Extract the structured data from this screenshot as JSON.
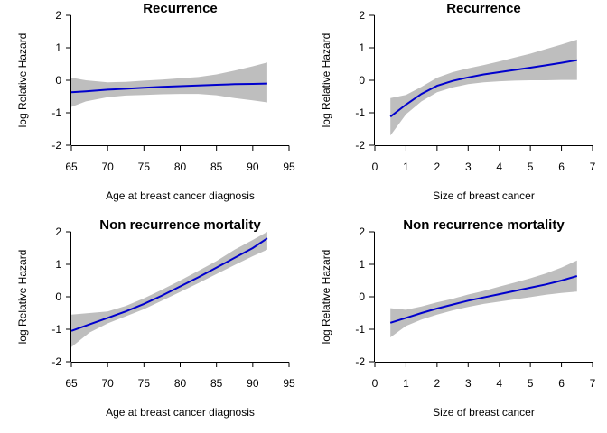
{
  "chart_data": [
    {
      "type": "line",
      "title": "Recurrence",
      "xlabel": "Age at breast cancer diagnosis",
      "ylabel": "log Relative Hazard",
      "xlim": [
        65,
        95
      ],
      "ylim": [
        -2,
        2
      ],
      "xticks": [
        "65",
        "70",
        "75",
        "80",
        "85",
        "90",
        "95"
      ],
      "yticks": [
        "-2",
        "-1",
        "0",
        "1",
        "2"
      ],
      "band_color": "#bebebe",
      "line_color": "#0000cd",
      "series": [
        {
          "x": [
            65,
            67,
            70,
            72.5,
            75,
            77.5,
            80,
            82.5,
            85,
            87.5,
            90,
            92
          ],
          "values": [
            -0.37,
            -0.34,
            -0.29,
            -0.26,
            -0.23,
            -0.2,
            -0.18,
            -0.16,
            -0.14,
            -0.12,
            -0.11,
            -0.1
          ],
          "lower": [
            -0.82,
            -0.65,
            -0.52,
            -0.47,
            -0.45,
            -0.43,
            -0.42,
            -0.42,
            -0.46,
            -0.55,
            -0.62,
            -0.68
          ],
          "upper": [
            0.08,
            0.0,
            -0.06,
            -0.05,
            -0.01,
            0.02,
            0.06,
            0.1,
            0.18,
            0.3,
            0.43,
            0.55
          ]
        }
      ]
    },
    {
      "type": "line",
      "title": "Recurrence",
      "xlabel": "Size of breast cancer",
      "ylabel": "log Relative Hazard",
      "xlim": [
        0,
        7
      ],
      "ylim": [
        -2,
        2
      ],
      "xticks": [
        "0",
        "1",
        "2",
        "3",
        "4",
        "5",
        "6",
        "7"
      ],
      "yticks": [
        "-2",
        "-1",
        "0",
        "1",
        "2"
      ],
      "band_color": "#bebebe",
      "line_color": "#0000cd",
      "series": [
        {
          "x": [
            0.5,
            1.0,
            1.5,
            2.0,
            2.5,
            3.0,
            3.5,
            4.0,
            4.5,
            5.0,
            5.5,
            6.0,
            6.5
          ],
          "values": [
            -1.12,
            -0.75,
            -0.42,
            -0.17,
            -0.02,
            0.09,
            0.18,
            0.25,
            0.32,
            0.39,
            0.46,
            0.54,
            0.62
          ],
          "lower": [
            -1.7,
            -1.05,
            -0.65,
            -0.37,
            -0.22,
            -0.12,
            -0.06,
            -0.03,
            -0.01,
            0.0,
            0.0,
            0.01,
            0.01
          ],
          "upper": [
            -0.55,
            -0.45,
            -0.2,
            0.08,
            0.25,
            0.37,
            0.47,
            0.58,
            0.7,
            0.82,
            0.96,
            1.1,
            1.25
          ]
        }
      ]
    },
    {
      "type": "line",
      "title": "Non recurrence mortality",
      "xlabel": "Age at breast cancer diagnosis",
      "ylabel": "log Relative Hazard",
      "xlim": [
        65,
        95
      ],
      "ylim": [
        -2,
        2
      ],
      "xticks": [
        "65",
        "70",
        "75",
        "80",
        "85",
        "90",
        "95"
      ],
      "yticks": [
        "-2",
        "-1",
        "0",
        "1",
        "2"
      ],
      "band_color": "#bebebe",
      "line_color": "#0000cd",
      "series": [
        {
          "x": [
            65,
            67.5,
            70,
            72.5,
            75,
            77.5,
            80,
            82.5,
            85,
            87.5,
            90,
            92
          ],
          "values": [
            -1.05,
            -0.85,
            -0.65,
            -0.45,
            -0.22,
            0.04,
            0.32,
            0.6,
            0.9,
            1.2,
            1.5,
            1.8
          ],
          "lower": [
            -1.55,
            -1.1,
            -0.82,
            -0.6,
            -0.38,
            -0.12,
            0.15,
            0.42,
            0.7,
            0.98,
            1.25,
            1.45
          ],
          "upper": [
            -0.55,
            -0.5,
            -0.45,
            -0.28,
            -0.05,
            0.22,
            0.5,
            0.8,
            1.1,
            1.45,
            1.75,
            2.0
          ]
        }
      ]
    },
    {
      "type": "line",
      "title": "Non recurrence mortality",
      "xlabel": "Size of breast cancer",
      "ylabel": "log Relative Hazard",
      "xlim": [
        0,
        7
      ],
      "ylim": [
        -2,
        2
      ],
      "xticks": [
        "0",
        "1",
        "2",
        "3",
        "4",
        "5",
        "6",
        "7"
      ],
      "yticks": [
        "-2",
        "-1",
        "0",
        "1",
        "2"
      ],
      "band_color": "#bebebe",
      "line_color": "#0000cd",
      "series": [
        {
          "x": [
            0.5,
            1.0,
            1.5,
            2.0,
            2.5,
            3.0,
            3.5,
            4.0,
            4.5,
            5.0,
            5.5,
            6.0,
            6.5
          ],
          "values": [
            -0.8,
            -0.65,
            -0.5,
            -0.36,
            -0.24,
            -0.12,
            -0.02,
            0.08,
            0.18,
            0.28,
            0.38,
            0.5,
            0.64
          ],
          "lower": [
            -1.25,
            -0.9,
            -0.7,
            -0.55,
            -0.42,
            -0.31,
            -0.22,
            -0.15,
            -0.08,
            -0.01,
            0.06,
            0.12,
            0.16
          ],
          "upper": [
            -0.35,
            -0.4,
            -0.3,
            -0.17,
            -0.06,
            0.07,
            0.18,
            0.31,
            0.44,
            0.57,
            0.72,
            0.9,
            1.12
          ]
        }
      ]
    }
  ]
}
